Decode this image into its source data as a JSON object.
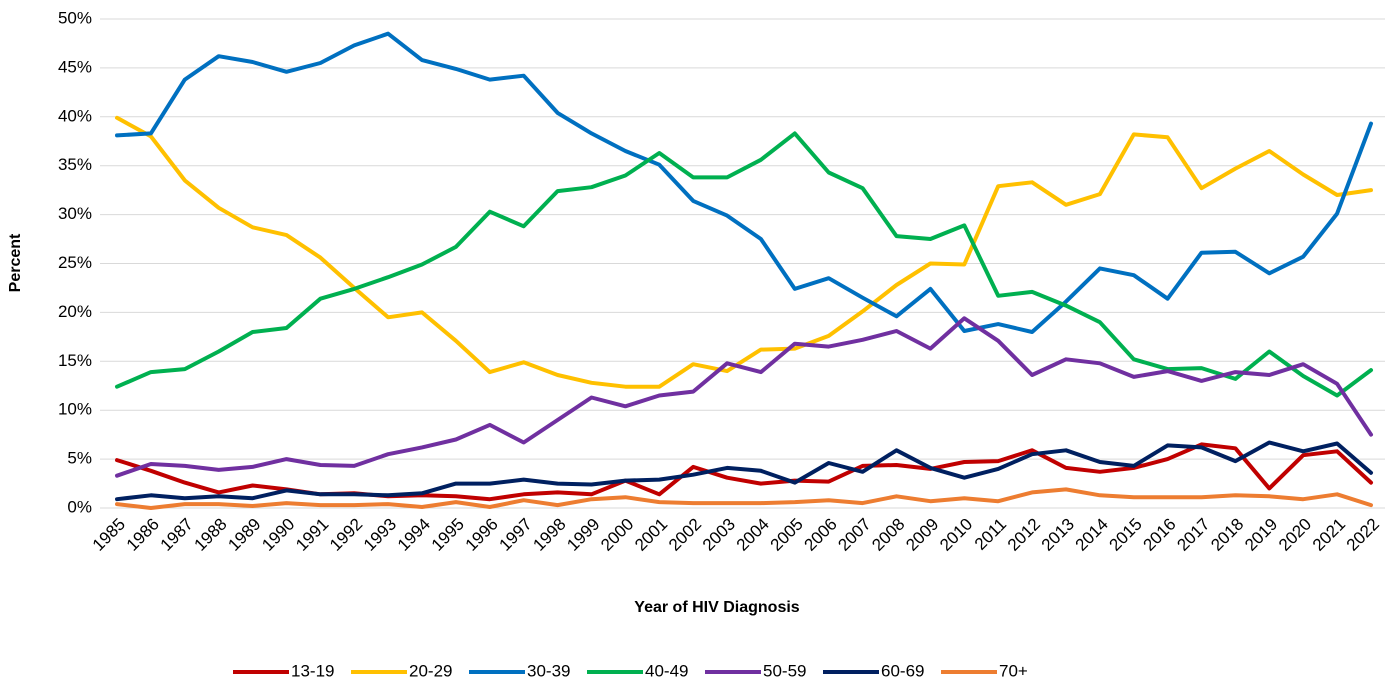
{
  "chart_data": {
    "type": "line",
    "x_label": "Year of HIV Diagnosis",
    "y_label": "Percent",
    "categories": [
      "1985",
      "1986",
      "1987",
      "1988",
      "1989",
      "1990",
      "1991",
      "1992",
      "1993",
      "1994",
      "1995",
      "1996",
      "1997",
      "1998",
      "1999",
      "2000",
      "2001",
      "2002",
      "2003",
      "2004",
      "2005",
      "2006",
      "2007",
      "2008",
      "2009",
      "2010",
      "2011",
      "2012",
      "2013",
      "2014",
      "2015",
      "2016",
      "2017",
      "2018",
      "2019",
      "2020",
      "2021",
      "2022"
    ],
    "series": [
      {
        "name": "13-19",
        "color": "#c00000",
        "values": [
          4.9,
          3.8,
          2.6,
          1.6,
          2.3,
          1.9,
          1.4,
          1.5,
          1.2,
          1.3,
          1.2,
          0.9,
          1.4,
          1.6,
          1.4,
          2.8,
          1.4,
          4.2,
          3.1,
          2.5,
          2.8,
          2.7,
          4.3,
          4.4,
          4.0,
          4.7,
          4.8,
          5.9,
          4.1,
          3.7,
          4.1,
          5.0,
          6.5,
          6.1,
          2.0,
          5.4,
          5.8,
          2.6
        ]
      },
      {
        "name": "20-29",
        "color": "#ffc000",
        "values": [
          39.9,
          38.0,
          33.5,
          30.7,
          28.7,
          27.9,
          25.6,
          22.5,
          19.5,
          20.0,
          17.1,
          13.9,
          14.9,
          13.6,
          12.8,
          12.4,
          12.4,
          14.7,
          14.0,
          16.2,
          16.3,
          17.6,
          20.1,
          22.8,
          25.0,
          24.9,
          32.9,
          33.3,
          31.0,
          32.1,
          38.2,
          37.9,
          32.7,
          34.7,
          36.5,
          34.1,
          32.0,
          32.5
        ]
      },
      {
        "name": "30-39",
        "color": "#0070c0",
        "values": [
          38.1,
          38.3,
          43.8,
          46.2,
          45.6,
          44.6,
          45.5,
          47.3,
          48.5,
          45.8,
          44.9,
          43.8,
          44.2,
          40.4,
          38.3,
          36.5,
          35.1,
          31.4,
          29.9,
          27.5,
          22.4,
          23.5,
          21.5,
          19.6,
          22.4,
          18.1,
          18.8,
          18.0,
          21.1,
          24.5,
          23.8,
          21.4,
          26.1,
          26.2,
          24.0,
          25.7,
          30.1,
          39.3
        ]
      },
      {
        "name": "40-49",
        "color": "#00b050",
        "values": [
          12.4,
          13.9,
          14.2,
          16.0,
          18.0,
          18.4,
          21.4,
          22.4,
          23.6,
          24.9,
          26.7,
          30.3,
          28.8,
          32.4,
          32.8,
          34.0,
          36.3,
          33.8,
          33.8,
          35.6,
          38.3,
          34.3,
          32.7,
          27.8,
          27.5,
          28.9,
          21.7,
          22.1,
          20.7,
          19.0,
          15.2,
          14.2,
          14.3,
          13.2,
          16.0,
          13.5,
          11.5,
          14.1
        ]
      },
      {
        "name": "50-59",
        "color": "#7030a0",
        "values": [
          3.3,
          4.5,
          4.3,
          3.9,
          4.2,
          5.0,
          4.4,
          4.3,
          5.5,
          6.2,
          7.0,
          8.5,
          6.7,
          9.0,
          11.3,
          10.4,
          11.5,
          11.9,
          14.8,
          13.9,
          16.8,
          16.5,
          17.2,
          18.1,
          16.3,
          19.4,
          17.1,
          13.6,
          15.2,
          14.8,
          13.4,
          14.0,
          13.0,
          13.9,
          13.6,
          14.7,
          12.7,
          7.5
        ]
      },
      {
        "name": "60-69",
        "color": "#002060",
        "values": [
          0.9,
          1.3,
          1.0,
          1.2,
          1.0,
          1.8,
          1.4,
          1.4,
          1.3,
          1.5,
          2.5,
          2.5,
          2.9,
          2.5,
          2.4,
          2.8,
          2.9,
          3.4,
          4.1,
          3.8,
          2.6,
          4.6,
          3.7,
          5.9,
          4.1,
          3.1,
          4.0,
          5.5,
          5.9,
          4.7,
          4.3,
          6.4,
          6.2,
          4.8,
          6.7,
          5.8,
          6.6,
          3.6
        ]
      },
      {
        "name": "70+",
        "color": "#ed7d31",
        "values": [
          0.4,
          0.0,
          0.4,
          0.4,
          0.2,
          0.5,
          0.3,
          0.3,
          0.4,
          0.1,
          0.6,
          0.1,
          0.8,
          0.3,
          0.9,
          1.1,
          0.6,
          0.5,
          0.5,
          0.5,
          0.6,
          0.8,
          0.5,
          1.2,
          0.7,
          1.0,
          0.7,
          1.6,
          1.9,
          1.3,
          1.1,
          1.1,
          1.1,
          1.3,
          1.2,
          0.9,
          1.4,
          0.3
        ]
      }
    ],
    "ylim": [
      0,
      50
    ],
    "yticks": [
      {
        "value": 0,
        "label": "0%"
      },
      {
        "value": 5,
        "label": "5%"
      },
      {
        "value": 10,
        "label": "10%"
      },
      {
        "value": 15,
        "label": "15%"
      },
      {
        "value": 20,
        "label": "20%"
      },
      {
        "value": 25,
        "label": "25%"
      },
      {
        "value": 30,
        "label": "30%"
      },
      {
        "value": 35,
        "label": "35%"
      },
      {
        "value": 40,
        "label": "40%"
      },
      {
        "value": 45,
        "label": "45%"
      },
      {
        "value": 50,
        "label": "50%"
      }
    ],
    "grid": true,
    "legend": "bottom"
  }
}
